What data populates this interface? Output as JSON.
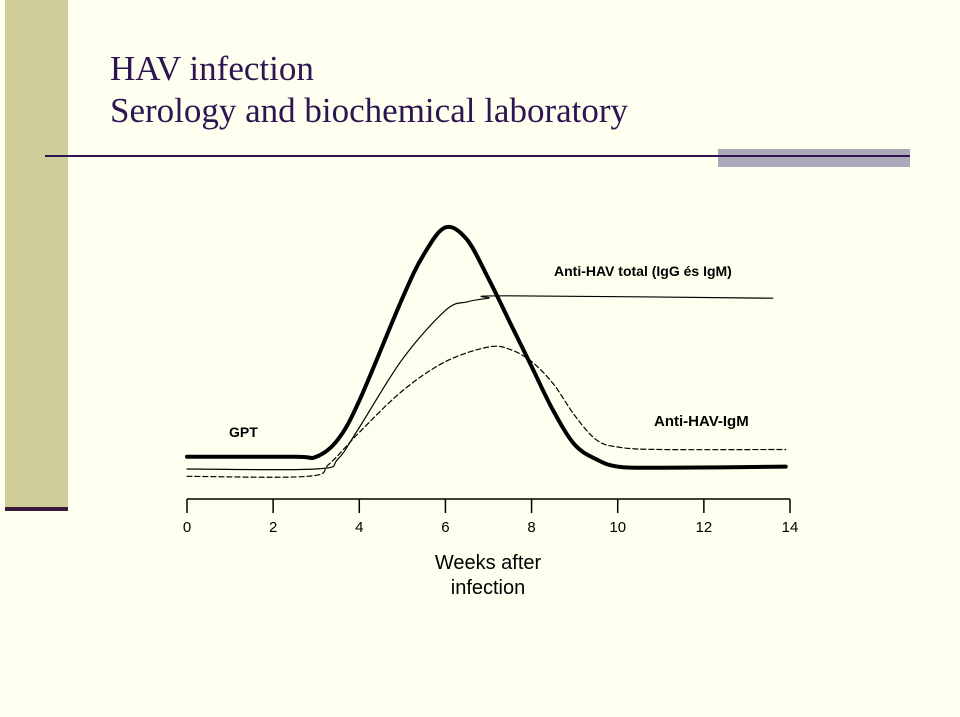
{
  "slide": {
    "title_line1": "HAV infection",
    "title_line2": "Serology and biochemical laboratory"
  },
  "colors": {
    "background": "#fffff0",
    "accent_band": "#cfcd9a",
    "title": "#2e1450",
    "curves": "#000000"
  },
  "chart_data": {
    "type": "line",
    "title": "",
    "xlabel": "Weeks after infection",
    "xlabel_lines": [
      "Weeks after",
      "infection"
    ],
    "ylabel": "",
    "xlim": [
      0,
      14
    ],
    "ylim": [
      0,
      100
    ],
    "xticks": [
      0,
      2,
      4,
      6,
      8,
      10,
      12,
      14
    ],
    "grid": false,
    "legend": "none",
    "series": [
      {
        "name": "GPT",
        "style": "thick-solid",
        "x": [
          0,
          2.5,
          3.0,
          3.5,
          4.0,
          5.0,
          5.5,
          6.0,
          6.5,
          7.0,
          7.5,
          8.0,
          8.5,
          9.0,
          9.5,
          10.0,
          11.0,
          13.9
        ],
        "y": [
          5,
          5,
          5,
          12,
          28,
          70,
          88,
          99,
          94,
          78,
          60,
          42,
          24,
          10,
          4,
          1,
          0.5,
          1
        ]
      },
      {
        "name": "Anti-HAV total (IgG és IgM)",
        "style": "thin-solid",
        "x": [
          0,
          3.0,
          3.5,
          4.0,
          5.0,
          6.0,
          6.5,
          7.0,
          7.4,
          13.6
        ],
        "y": [
          0,
          0,
          4,
          17,
          45,
          65,
          68.5,
          70,
          71,
          70
        ]
      },
      {
        "name": "Anti-HAV-IgM",
        "style": "dashed",
        "x": [
          0,
          2.8,
          3.3,
          4.0,
          5.0,
          6.0,
          7.0,
          7.5,
          8.0,
          8.5,
          9.0,
          9.5,
          10.0,
          11.0,
          13.9
        ],
        "y": [
          -3,
          -3,
          2,
          15,
          32,
          44,
          50,
          49,
          44,
          35,
          22,
          12,
          9,
          8,
          8
        ]
      }
    ],
    "annotations": [
      {
        "text": "Anti-HAV total (IgG és IgM)",
        "series": 1
      },
      {
        "text": "GPT",
        "series": 0
      },
      {
        "text": "Anti-HAV-IgM",
        "series": 2
      }
    ]
  }
}
